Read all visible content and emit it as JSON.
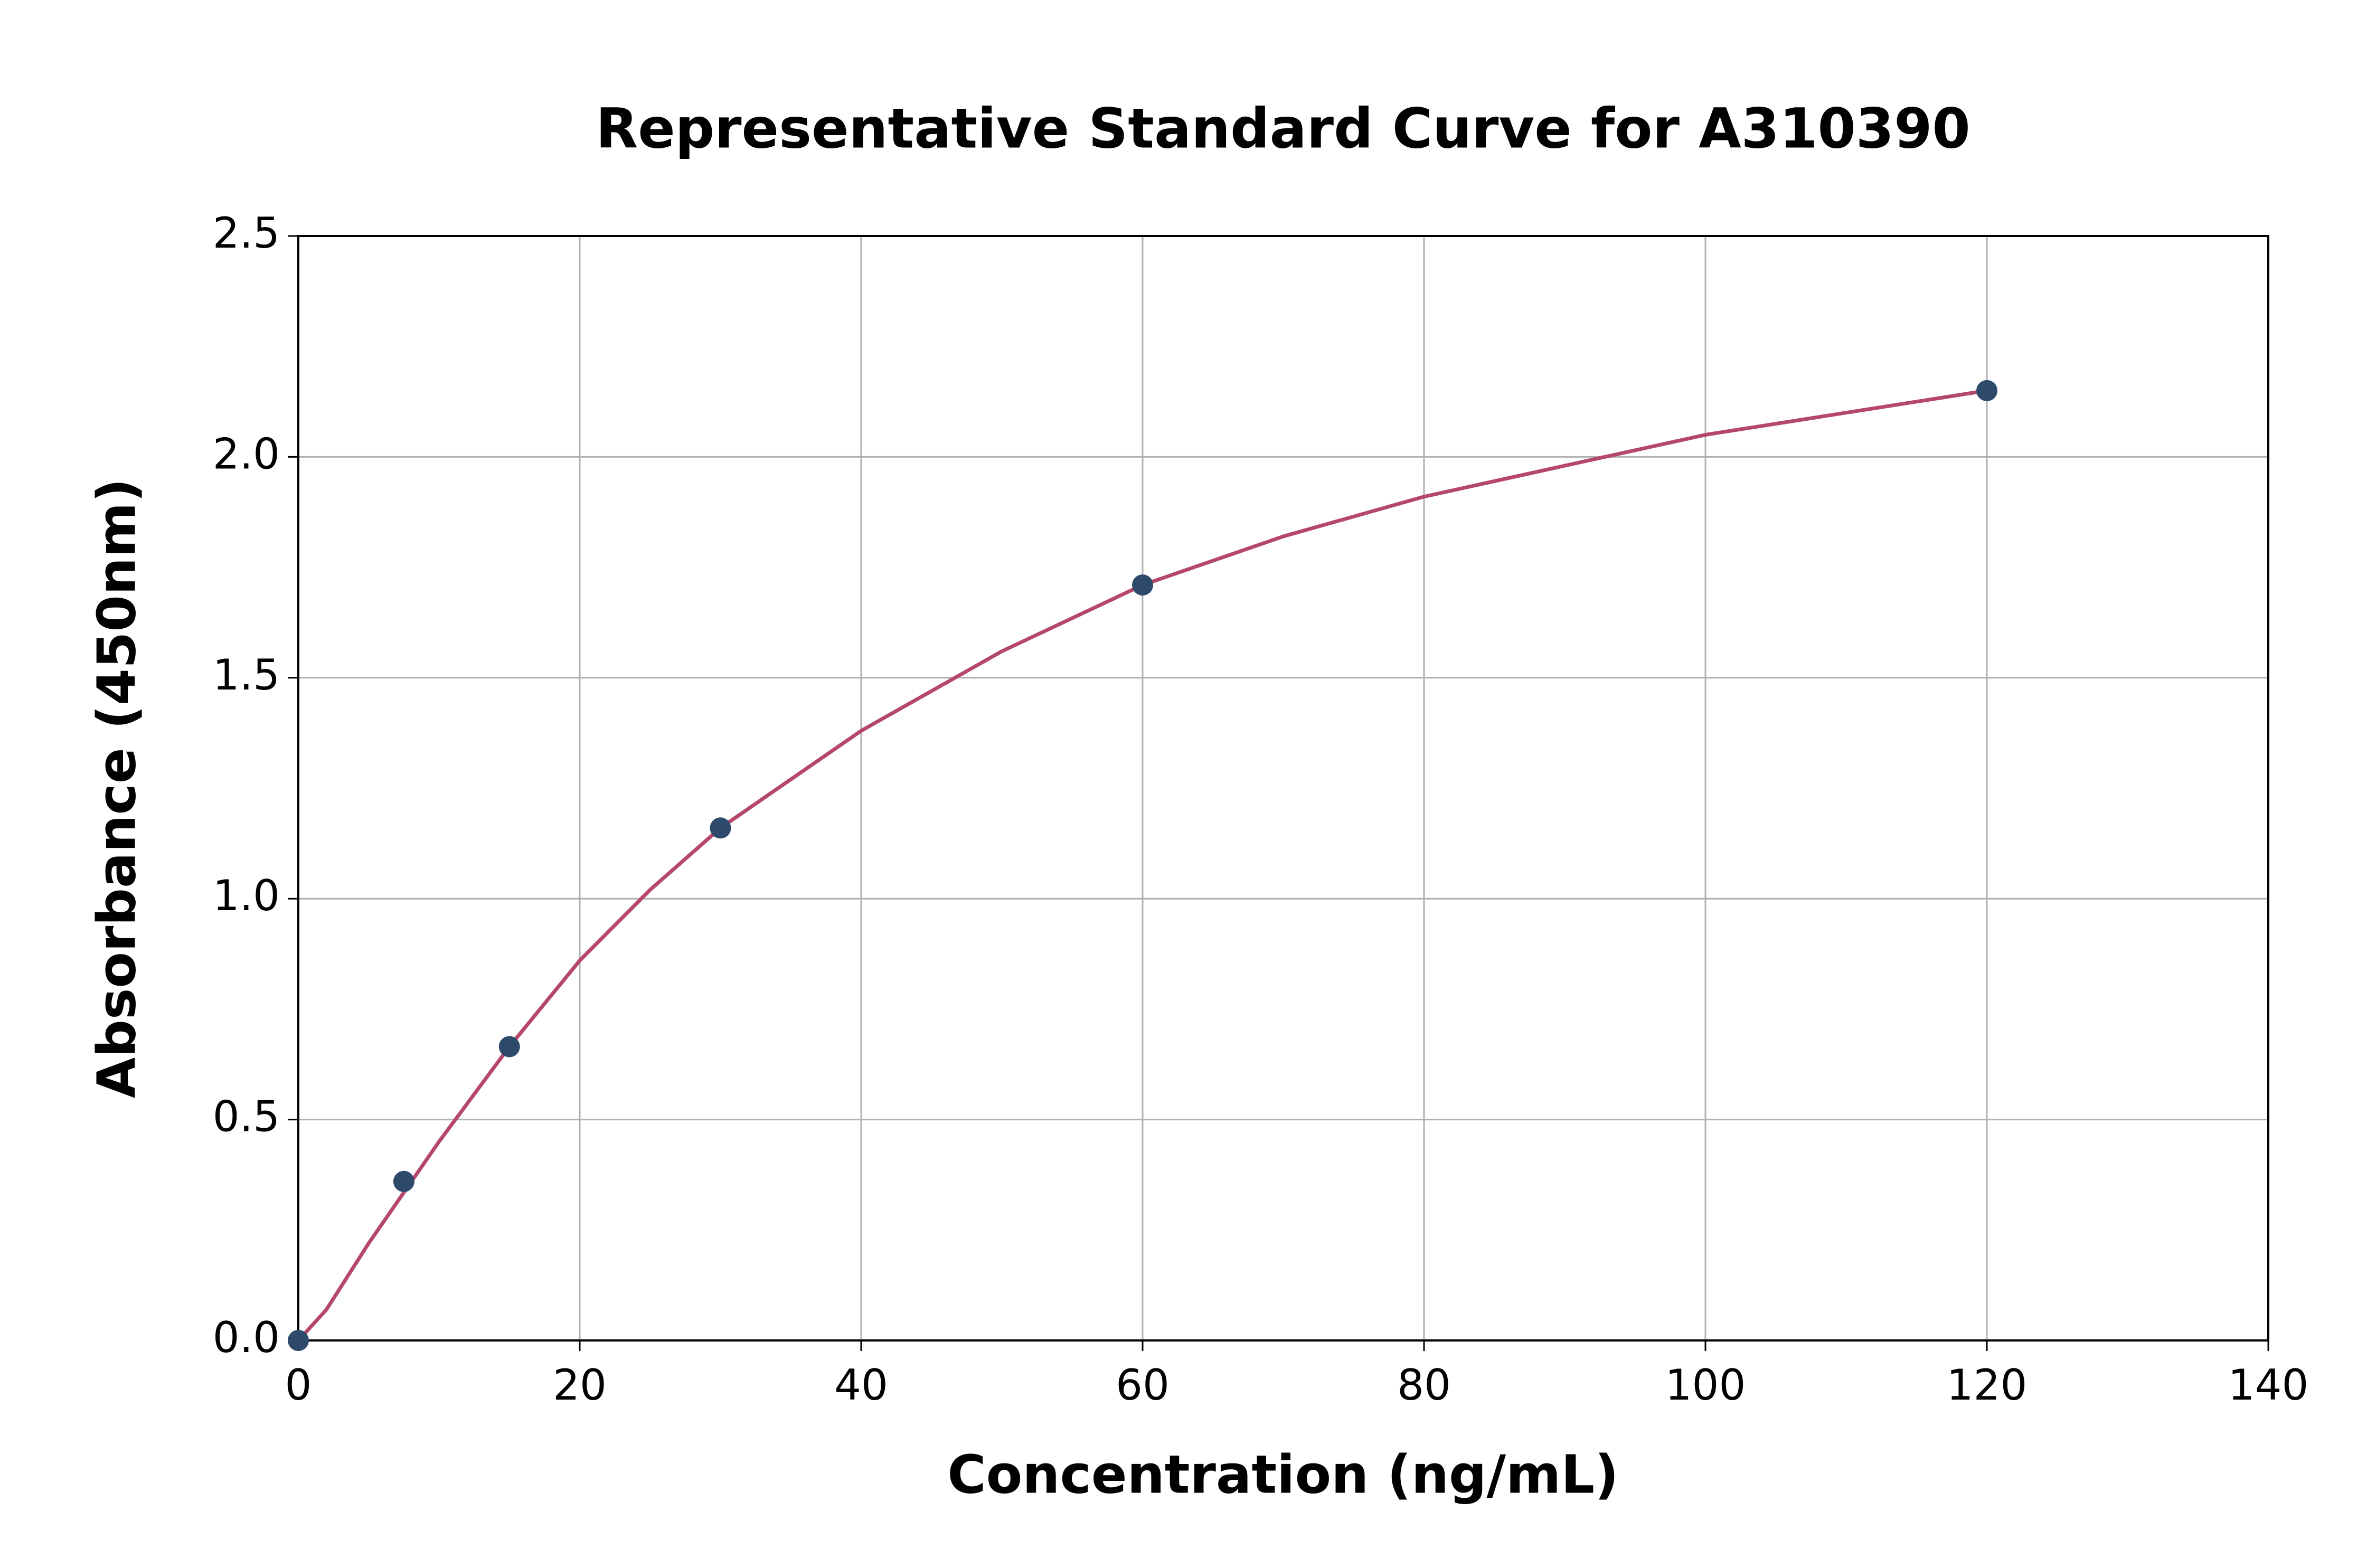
{
  "chart_data": {
    "type": "scatter",
    "title": "Representative Standard Curve for A310390",
    "xlabel": "Concentration (ng/mL)",
    "ylabel": "Absorbance (450nm)",
    "x": [
      0,
      7.5,
      15,
      30,
      60,
      120
    ],
    "values": [
      0,
      0.36,
      0.665,
      1.16,
      1.71,
      2.15
    ],
    "color": "#2e4a6b",
    "fit": {
      "color": "#b5476b",
      "x": [
        0,
        2,
        5,
        10,
        15,
        20,
        25,
        30,
        40,
        50,
        60,
        70,
        80,
        90,
        100,
        110,
        120
      ],
      "values": [
        0,
        0.07,
        0.22,
        0.45,
        0.665,
        0.86,
        1.02,
        1.16,
        1.38,
        1.56,
        1.71,
        1.82,
        1.91,
        1.98,
        2.05,
        2.1,
        2.15
      ]
    },
    "xlim": [
      0,
      140
    ],
    "ylim": [
      0,
      2.5
    ],
    "xticks": [
      0,
      20,
      40,
      60,
      80,
      100,
      120,
      140
    ],
    "yticks": [
      {
        "value": 0,
        "label": "0.0"
      },
      0.5,
      {
        "value": 1,
        "label": "1.0"
      },
      1.5,
      {
        "value": 2,
        "label": "2.0"
      },
      2.5
    ],
    "grid": true
  }
}
